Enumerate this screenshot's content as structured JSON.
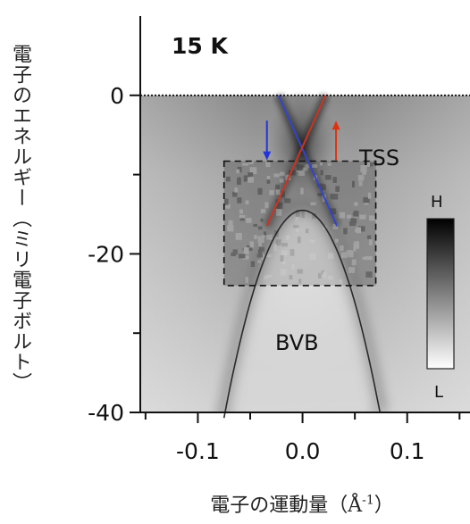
{
  "chart_data": {
    "type": "heatmap",
    "xlabel_main": "電子の運動量（Å",
    "xlabel_sup": "-1",
    "xlabel_end": "）",
    "ylabel": "電子のエネルギー（ミリ電子ボルト）",
    "xlim": [
      -0.155,
      0.16
    ],
    "ylim": [
      -40,
      10
    ],
    "x_ticks": [
      -0.1,
      0.0,
      0.1
    ],
    "x_tick_labels": [
      "-0.1",
      "0.0",
      "0.1"
    ],
    "y_ticks": [
      0,
      -20,
      -40
    ],
    "y_tick_labels": [
      "0",
      "-20",
      "-40"
    ],
    "x_minor_ticks": [
      -0.15,
      -0.05,
      0.05,
      0.15
    ],
    "y_minor_ticks": [
      -10,
      -30
    ],
    "temperature_label": "15 K",
    "fermi_level": 0,
    "tss_label": "TSS",
    "bvb_label": "BVB",
    "spin_down_arrow": {
      "x": -0.034,
      "y_top": -3.2,
      "y_bottom": -8.2,
      "color": "#2233dd"
    },
    "spin_up_arrow": {
      "x": 0.032,
      "y_top": -3.2,
      "y_bottom": -8.2,
      "color": "#dd3311"
    },
    "tss_blue_line": {
      "x": [
        -0.023,
        0.033
      ],
      "y": [
        0,
        -16.5
      ],
      "color": "#3344cc"
    },
    "tss_red_line": {
      "x": [
        0.022,
        -0.034
      ],
      "y": [
        0,
        -16.5
      ],
      "color": "#cc3322"
    },
    "bvb_parabola": {
      "vertex_x": 0.0,
      "vertex_y": -14.5,
      "x_range": [
        -0.075,
        0.074
      ],
      "y_at_edges": -40
    },
    "dashed_box": {
      "x": [
        -0.075,
        0.07
      ],
      "y": [
        -8.3,
        -24
      ]
    },
    "colorbar": {
      "high_label": "H",
      "low_label": "L",
      "high_color": "#000000",
      "low_color": "#ffffff"
    }
  }
}
